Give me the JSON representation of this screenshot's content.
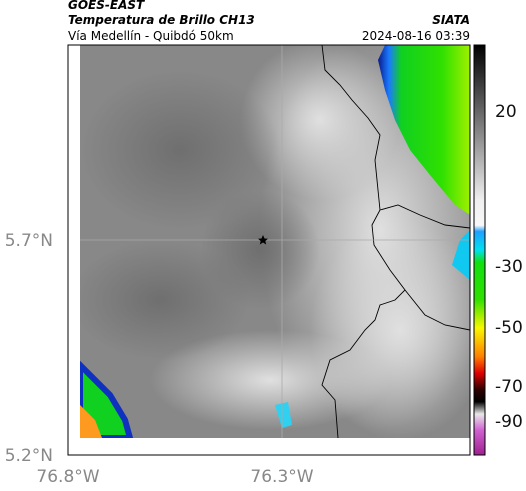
{
  "header": {
    "satellite": "GOES-EAST",
    "product": "Temperatura de Brillo CH13",
    "route": "Vía Medellín - Quibdó 50km",
    "source": "SIATA",
    "timestamp": "2024-08-16 03:39"
  },
  "map": {
    "lat_labels": [
      "5.7°N",
      "5.2°N"
    ],
    "lon_labels": [
      "76.8°W",
      "76.3°W"
    ]
  },
  "colorbar": {
    "ticks": [
      "20",
      "-30",
      "-50",
      "-70",
      "-90"
    ]
  }
}
